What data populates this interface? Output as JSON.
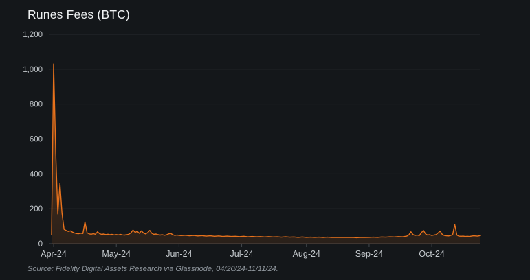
{
  "chart_data": {
    "type": "area",
    "title": "Runes Fees (BTC)",
    "source": "Source: Fidelity Digital Assets Research via Glassnode, 04/20/24-11/11/24.",
    "ylim": [
      0,
      1200
    ],
    "y_ticks": [
      0,
      200,
      400,
      600,
      800,
      1000,
      1200
    ],
    "y_tick_labels": [
      "0",
      "200",
      "400",
      "600",
      "800",
      "1,000",
      "1,200"
    ],
    "x_range_days": [
      0,
      205
    ],
    "x_ticks": [
      {
        "day": 1,
        "label": "Apr-24"
      },
      {
        "day": 31,
        "label": "May-24"
      },
      {
        "day": 61,
        "label": "Jun-24"
      },
      {
        "day": 91,
        "label": "Jul-24"
      },
      {
        "day": 122,
        "label": "Aug-24"
      },
      {
        "day": 152,
        "label": "Sep-24"
      },
      {
        "day": 182,
        "label": "Oct-24"
      }
    ],
    "grid": "horizontal-only",
    "legend": "none",
    "colors": {
      "background": "#14171a",
      "line": "#e8721c",
      "area_top": "rgba(232,114,28,0.42)",
      "area_bottom": "rgba(232,114,28,0.10)",
      "gridline": "#26292d",
      "axis": "#43484d",
      "tick_label": "#c3c8cc",
      "title": "#eef1f2",
      "source": "#8e959c"
    },
    "series": [
      {
        "name": "Runes Fees (BTC)",
        "points": [
          [
            0,
            50
          ],
          [
            1,
            1030
          ],
          [
            2,
            520
          ],
          [
            3,
            170
          ],
          [
            4,
            345
          ],
          [
            5,
            175
          ],
          [
            6,
            82
          ],
          [
            7,
            75
          ],
          [
            8,
            70
          ],
          [
            9,
            73
          ],
          [
            10,
            66
          ],
          [
            11,
            61
          ],
          [
            12,
            58
          ],
          [
            13,
            57
          ],
          [
            14,
            60
          ],
          [
            15,
            58
          ],
          [
            16,
            125
          ],
          [
            17,
            62
          ],
          [
            18,
            56
          ],
          [
            19,
            54
          ],
          [
            20,
            57
          ],
          [
            21,
            54
          ],
          [
            22,
            68
          ],
          [
            23,
            57
          ],
          [
            24,
            53
          ],
          [
            25,
            55
          ],
          [
            26,
            52
          ],
          [
            27,
            54
          ],
          [
            28,
            51
          ],
          [
            29,
            53
          ],
          [
            30,
            50
          ],
          [
            31,
            52
          ],
          [
            32,
            50
          ],
          [
            33,
            53
          ],
          [
            34,
            50
          ],
          [
            35,
            49
          ],
          [
            36,
            51
          ],
          [
            37,
            54
          ],
          [
            38,
            62
          ],
          [
            39,
            78
          ],
          [
            40,
            64
          ],
          [
            41,
            71
          ],
          [
            42,
            59
          ],
          [
            43,
            73
          ],
          [
            44,
            61
          ],
          [
            45,
            56
          ],
          [
            46,
            63
          ],
          [
            47,
            76
          ],
          [
            48,
            59
          ],
          [
            49,
            53
          ],
          [
            50,
            55
          ],
          [
            51,
            51
          ],
          [
            52,
            49
          ],
          [
            53,
            51
          ],
          [
            54,
            48
          ],
          [
            55,
            50
          ],
          [
            56,
            56
          ],
          [
            57,
            59
          ],
          [
            58,
            51
          ],
          [
            59,
            47
          ],
          [
            60,
            49
          ],
          [
            62,
            46
          ],
          [
            64,
            48
          ],
          [
            66,
            45
          ],
          [
            68,
            47
          ],
          [
            70,
            44
          ],
          [
            72,
            46
          ],
          [
            74,
            43
          ],
          [
            76,
            45
          ],
          [
            78,
            42
          ],
          [
            80,
            44
          ],
          [
            82,
            41
          ],
          [
            84,
            43
          ],
          [
            86,
            41
          ],
          [
            88,
            42
          ],
          [
            90,
            40
          ],
          [
            92,
            42
          ],
          [
            94,
            39
          ],
          [
            96,
            41
          ],
          [
            98,
            39
          ],
          [
            100,
            40
          ],
          [
            102,
            38
          ],
          [
            104,
            40
          ],
          [
            106,
            38
          ],
          [
            108,
            39
          ],
          [
            110,
            37
          ],
          [
            112,
            39
          ],
          [
            114,
            37
          ],
          [
            116,
            38
          ],
          [
            118,
            36
          ],
          [
            120,
            38
          ],
          [
            122,
            36
          ],
          [
            124,
            37
          ],
          [
            126,
            36
          ],
          [
            128,
            37
          ],
          [
            130,
            35
          ],
          [
            132,
            37
          ],
          [
            134,
            35
          ],
          [
            136,
            36
          ],
          [
            138,
            35
          ],
          [
            140,
            36
          ],
          [
            142,
            35
          ],
          [
            144,
            36
          ],
          [
            146,
            34
          ],
          [
            148,
            36
          ],
          [
            150,
            35
          ],
          [
            152,
            36
          ],
          [
            154,
            37
          ],
          [
            156,
            36
          ],
          [
            158,
            38
          ],
          [
            160,
            37
          ],
          [
            162,
            39
          ],
          [
            164,
            38
          ],
          [
            166,
            40
          ],
          [
            168,
            39
          ],
          [
            170,
            43
          ],
          [
            171,
            50
          ],
          [
            172,
            68
          ],
          [
            173,
            52
          ],
          [
            174,
            47
          ],
          [
            175,
            49
          ],
          [
            176,
            46
          ],
          [
            177,
            62
          ],
          [
            178,
            76
          ],
          [
            179,
            56
          ],
          [
            180,
            49
          ],
          [
            181,
            51
          ],
          [
            182,
            47
          ],
          [
            183,
            49
          ],
          [
            184,
            51
          ],
          [
            185,
            61
          ],
          [
            186,
            72
          ],
          [
            187,
            53
          ],
          [
            188,
            47
          ],
          [
            189,
            45
          ],
          [
            190,
            44
          ],
          [
            191,
            47
          ],
          [
            192,
            52
          ],
          [
            193,
            110
          ],
          [
            194,
            49
          ],
          [
            195,
            43
          ],
          [
            196,
            42
          ],
          [
            197,
            43
          ],
          [
            198,
            41
          ],
          [
            199,
            42
          ],
          [
            200,
            41
          ],
          [
            201,
            43
          ],
          [
            202,
            45
          ],
          [
            203,
            44
          ],
          [
            204,
            43
          ],
          [
            205,
            46
          ]
        ]
      }
    ]
  }
}
